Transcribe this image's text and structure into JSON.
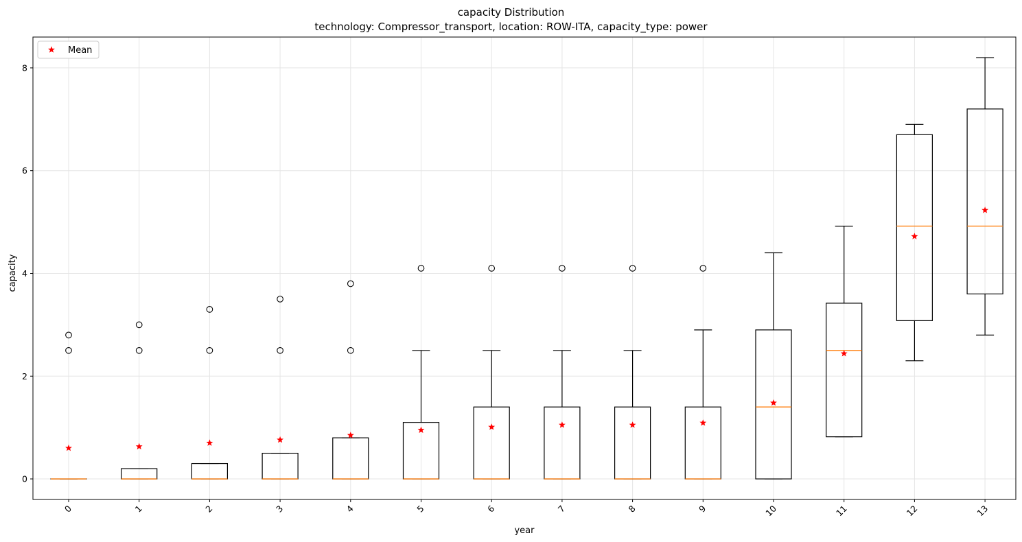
{
  "chart_data": {
    "type": "box",
    "title": "capacity Distribution",
    "subtitle": "technology: Compressor_transport, location: ROW-ITA, capacity_type: power",
    "xlabel": "year",
    "ylabel": "capacity",
    "ylim": [
      -0.4,
      8.6
    ],
    "yticks": [
      0,
      2,
      4,
      6,
      8
    ],
    "grid": true,
    "legend": {
      "position": "top-left",
      "entries": [
        {
          "label": "Mean",
          "marker": "red-star"
        }
      ]
    },
    "colors": {
      "box": "#000000",
      "median": "#ff7f0e",
      "mean": "#ff0000",
      "grid": "#e5e5e5"
    },
    "categories": [
      "0",
      "1",
      "2",
      "3",
      "4",
      "5",
      "6",
      "7",
      "8",
      "9",
      "10",
      "11",
      "12",
      "13"
    ],
    "boxes": [
      {
        "year": "0",
        "whislo": 0,
        "q1": 0,
        "med": 0,
        "q3": 0,
        "whishi": 0,
        "mean": 0.6,
        "fliers": [
          2.5,
          2.8
        ]
      },
      {
        "year": "1",
        "whislo": 0,
        "q1": 0,
        "med": 0,
        "q3": 0.2,
        "whishi": 0.2,
        "mean": 0.63,
        "fliers": [
          2.5,
          3.0
        ]
      },
      {
        "year": "2",
        "whislo": 0,
        "q1": 0,
        "med": 0,
        "q3": 0.3,
        "whishi": 0.3,
        "mean": 0.7,
        "fliers": [
          2.5,
          3.3
        ]
      },
      {
        "year": "3",
        "whislo": 0,
        "q1": 0,
        "med": 0,
        "q3": 0.5,
        "whishi": 0.5,
        "mean": 0.76,
        "fliers": [
          2.5,
          3.5
        ]
      },
      {
        "year": "4",
        "whislo": 0,
        "q1": 0,
        "med": 0,
        "q3": 0.8,
        "whishi": 0.8,
        "mean": 0.85,
        "fliers": [
          2.5,
          3.8
        ]
      },
      {
        "year": "5",
        "whislo": 0,
        "q1": 0,
        "med": 0,
        "q3": 1.1,
        "whishi": 2.5,
        "mean": 0.95,
        "fliers": [
          4.1
        ]
      },
      {
        "year": "6",
        "whislo": 0,
        "q1": 0,
        "med": 0,
        "q3": 1.4,
        "whishi": 2.5,
        "mean": 1.01,
        "fliers": [
          4.1
        ]
      },
      {
        "year": "7",
        "whislo": 0,
        "q1": 0,
        "med": 0,
        "q3": 1.4,
        "whishi": 2.5,
        "mean": 1.05,
        "fliers": [
          4.1
        ]
      },
      {
        "year": "8",
        "whislo": 0,
        "q1": 0,
        "med": 0,
        "q3": 1.4,
        "whishi": 2.5,
        "mean": 1.05,
        "fliers": [
          4.1
        ]
      },
      {
        "year": "9",
        "whislo": 0,
        "q1": 0,
        "med": 0,
        "q3": 1.4,
        "whishi": 2.9,
        "mean": 1.09,
        "fliers": [
          4.1
        ]
      },
      {
        "year": "10",
        "whislo": 0,
        "q1": 0,
        "med": 1.4,
        "q3": 2.9,
        "whishi": 4.4,
        "mean": 1.48,
        "fliers": []
      },
      {
        "year": "11",
        "whislo": 0.82,
        "q1": 0.82,
        "med": 2.5,
        "q3": 3.42,
        "whishi": 4.92,
        "mean": 2.44,
        "fliers": []
      },
      {
        "year": "12",
        "whislo": 2.3,
        "q1": 3.08,
        "med": 4.92,
        "q3": 6.7,
        "whishi": 6.9,
        "mean": 4.72,
        "fliers": []
      },
      {
        "year": "13",
        "whislo": 2.8,
        "q1": 3.6,
        "med": 4.92,
        "q3": 7.2,
        "whishi": 8.2,
        "mean": 5.23,
        "fliers": []
      }
    ]
  }
}
